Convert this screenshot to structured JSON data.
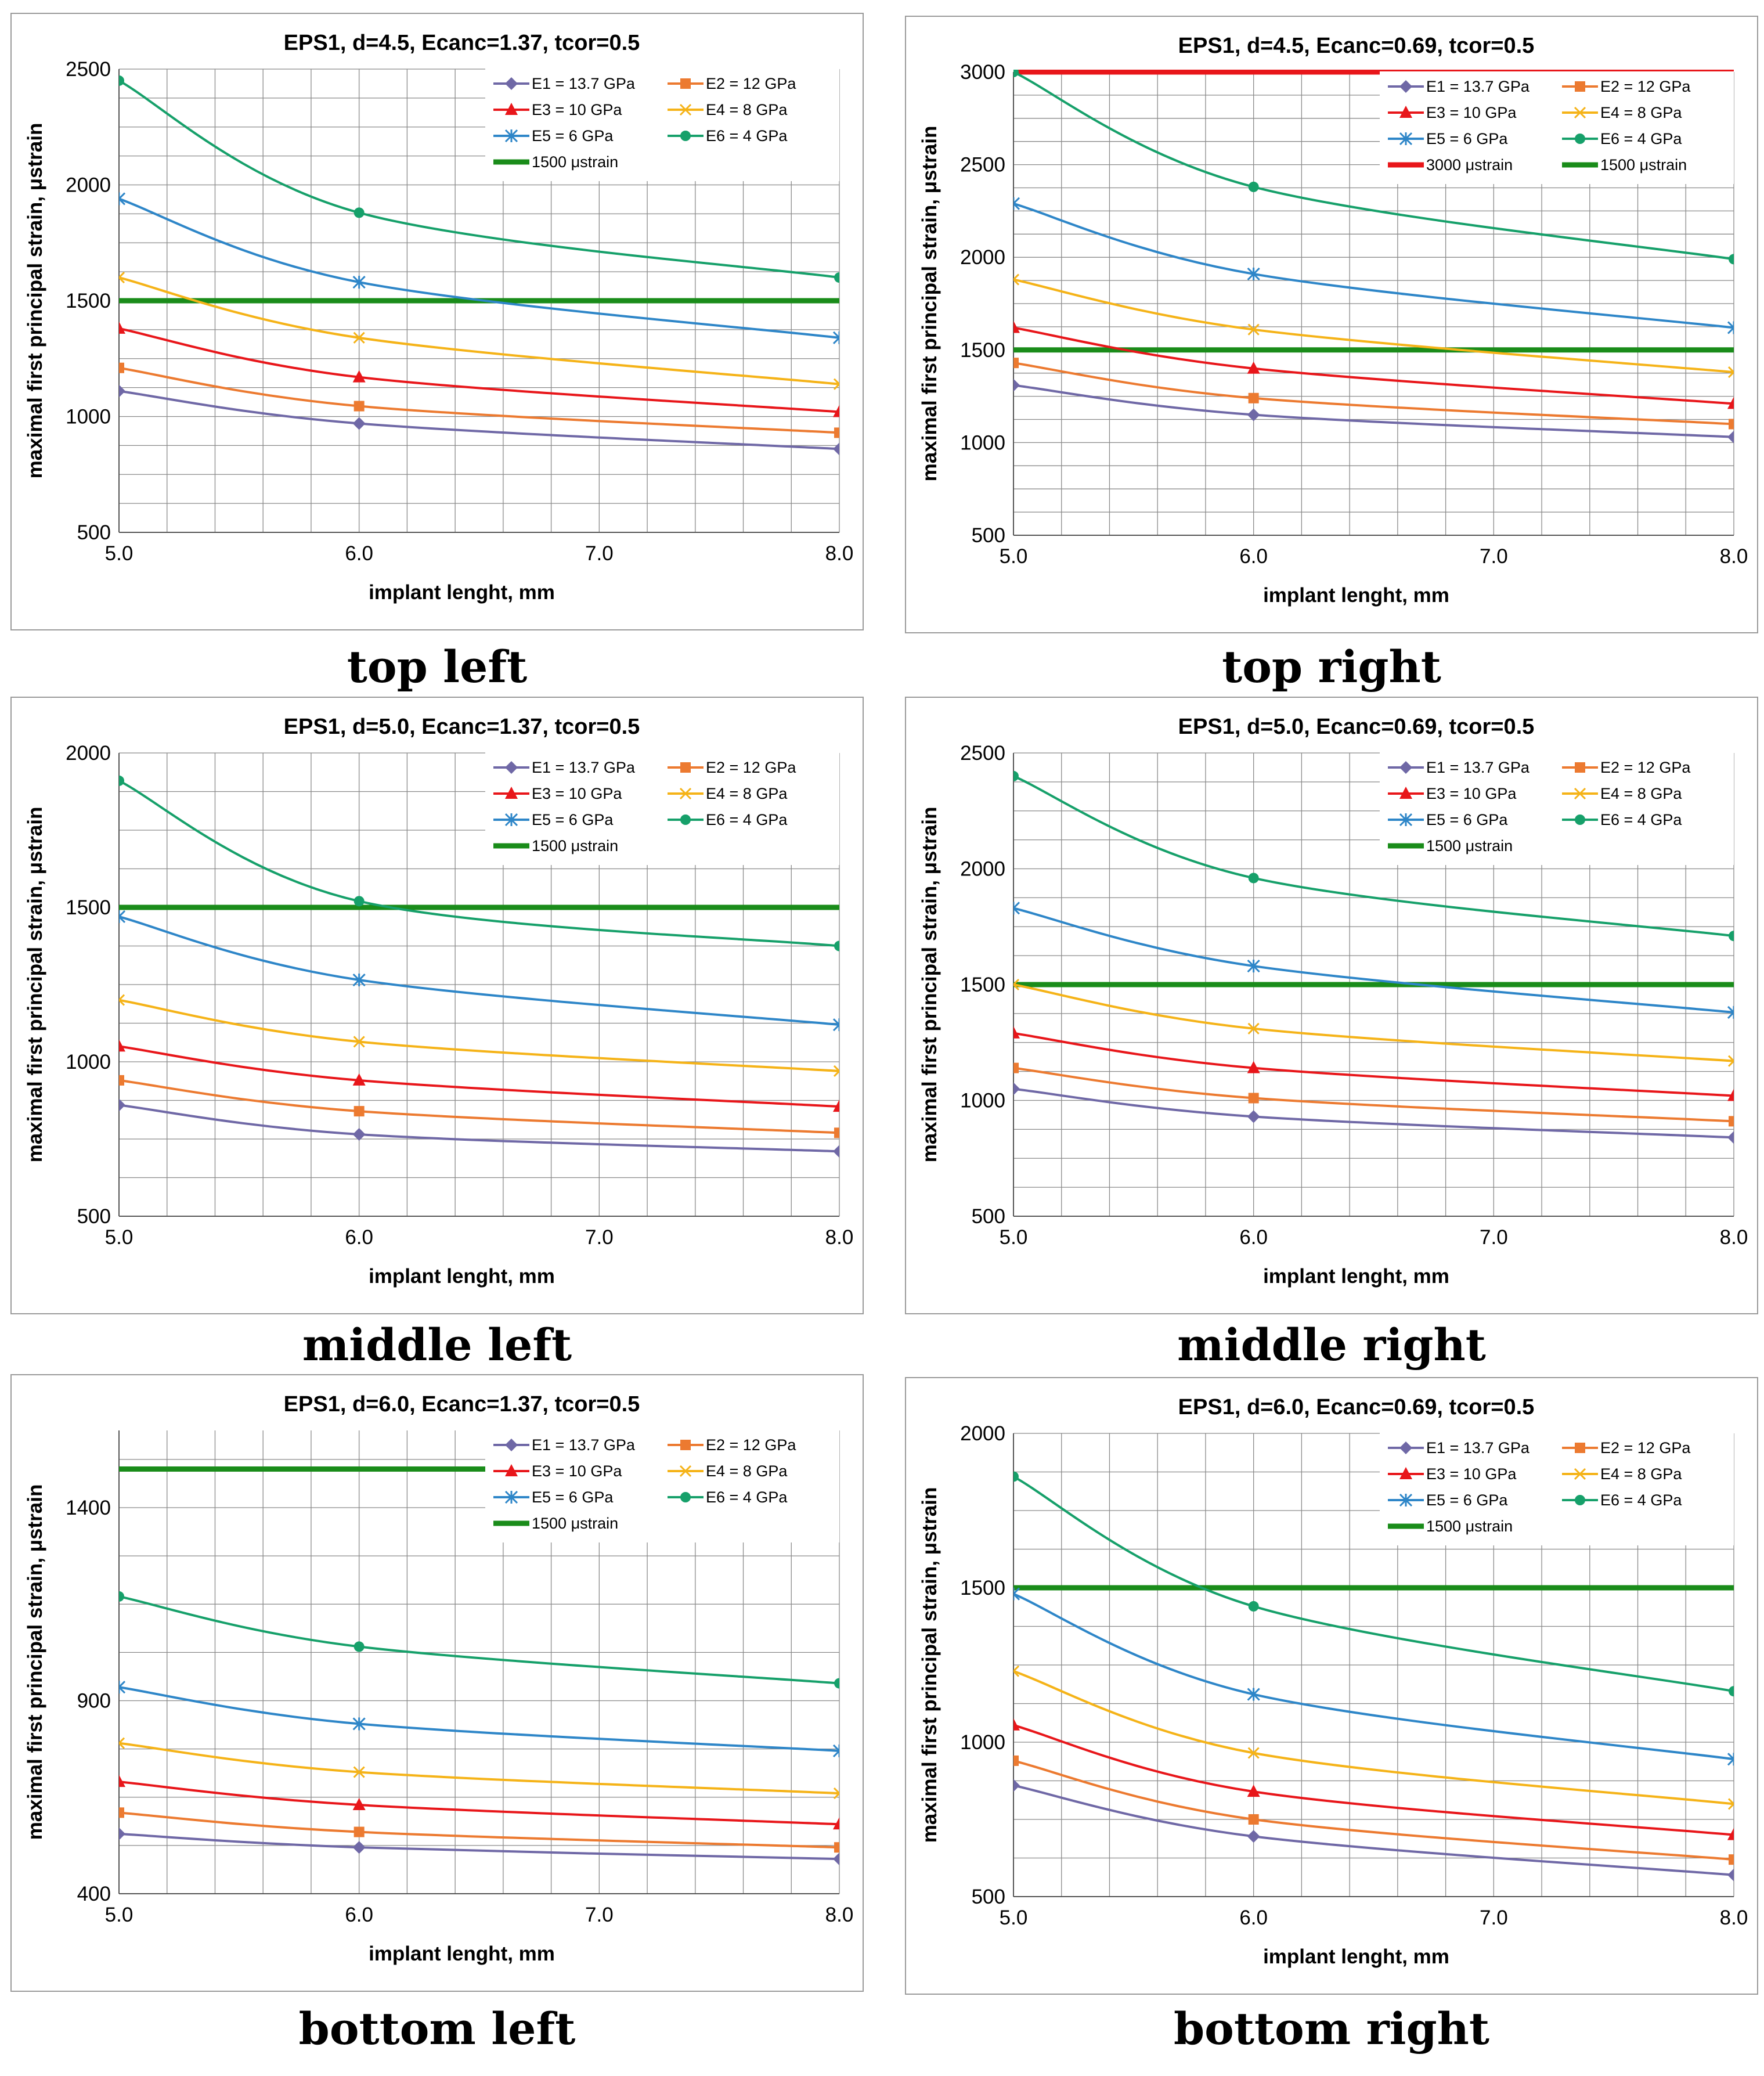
{
  "figure": {
    "colors": {
      "E1": "#6f68a6",
      "E2": "#ec7a30",
      "E3": "#e8161a",
      "E4": "#f5b318",
      "E5": "#2e86c8",
      "E6": "#16a06a",
      "ref1500": "#1a8c1a",
      "ref3000": "#e8161a"
    },
    "series_markers": {
      "E1": "diamond",
      "E2": "square",
      "E3": "triangle",
      "E4": "x",
      "E5": "star",
      "E6": "circle"
    }
  },
  "chart_data": [
    {
      "id": "top-left",
      "caption": "top left",
      "type": "line",
      "title": "EPS1, d=4.5, Ecanc=1.37, tcor=0.5",
      "xlabel": "implant lenght, mm",
      "ylabel": "maximal first principal strain, μstrain",
      "x": [
        5.0,
        6.0,
        8.0
      ],
      "xlim": [
        5.0,
        8.0
      ],
      "xticks": [
        "5.0",
        "6.0",
        "7.0",
        "8.0"
      ],
      "ylim": [
        500,
        2500
      ],
      "yticks": [
        "500",
        "1000",
        "1500",
        "2000",
        "2500"
      ],
      "series": [
        {
          "key": "E1",
          "name": "E1 = 13.7 GPa",
          "values": [
            1110,
            970,
            860
          ]
        },
        {
          "key": "E2",
          "name": "E2 = 12 GPa",
          "values": [
            1210,
            1045,
            930
          ]
        },
        {
          "key": "E3",
          "name": "E3 = 10 GPa",
          "values": [
            1380,
            1170,
            1020
          ]
        },
        {
          "key": "E4",
          "name": "E4 = 8 GPa",
          "values": [
            1600,
            1340,
            1140
          ]
        },
        {
          "key": "E5",
          "name": "E5 = 6 GPa",
          "values": [
            1940,
            1580,
            1340
          ]
        },
        {
          "key": "E6",
          "name": "E6 = 4 GPa",
          "values": [
            2450,
            1880,
            1600
          ]
        }
      ],
      "references": [
        {
          "key": "ref1500",
          "name": "1500 μstrain",
          "value": 1500
        }
      ]
    },
    {
      "id": "top-right",
      "caption": "top right",
      "type": "line",
      "title": "EPS1, d=4.5, Ecanc=0.69, tcor=0.5",
      "xlabel": "implant lenght, mm",
      "ylabel": "maximal first principal strain, μstrain",
      "x": [
        5.0,
        6.0,
        8.0
      ],
      "xlim": [
        5.0,
        8.0
      ],
      "xticks": [
        "5.0",
        "6.0",
        "7.0",
        "8.0"
      ],
      "ylim": [
        500,
        3000
      ],
      "yticks": [
        "500",
        "1000",
        "1500",
        "2000",
        "2500",
        "3000"
      ],
      "series": [
        {
          "key": "E1",
          "name": "E1 = 13.7 GPa",
          "values": [
            1310,
            1150,
            1030
          ]
        },
        {
          "key": "E2",
          "name": "E2 = 12 GPa",
          "values": [
            1430,
            1240,
            1100
          ]
        },
        {
          "key": "E3",
          "name": "E3 = 10 GPa",
          "values": [
            1620,
            1400,
            1210
          ]
        },
        {
          "key": "E4",
          "name": "E4 = 8 GPa",
          "values": [
            1880,
            1610,
            1380
          ]
        },
        {
          "key": "E5",
          "name": "E5 = 6 GPa",
          "values": [
            2290,
            1910,
            1620
          ]
        },
        {
          "key": "E6",
          "name": "E6 = 4 GPa",
          "values": [
            3000,
            2380,
            1990
          ]
        }
      ],
      "references": [
        {
          "key": "ref3000",
          "name": "3000 μstrain",
          "value": 3000
        },
        {
          "key": "ref1500",
          "name": "1500 μstrain",
          "value": 1500
        }
      ]
    },
    {
      "id": "middle-left",
      "caption": "middle left",
      "type": "line",
      "title": "EPS1, d=5.0, Ecanc=1.37, tcor=0.5",
      "xlabel": "implant lenght, mm",
      "ylabel": "maximal first principal strain, μstrain",
      "x": [
        5.0,
        6.0,
        8.0
      ],
      "xlim": [
        5.0,
        8.0
      ],
      "xticks": [
        "5.0",
        "6.0",
        "7.0",
        "8.0"
      ],
      "ylim": [
        500,
        2000
      ],
      "yticks": [
        "500",
        "1000",
        "1500",
        "2000"
      ],
      "series": [
        {
          "key": "E1",
          "name": "E1 = 13.7 GPa",
          "values": [
            860,
            765,
            710
          ]
        },
        {
          "key": "E2",
          "name": "E2 = 12 GPa",
          "values": [
            940,
            840,
            770
          ]
        },
        {
          "key": "E3",
          "name": "E3 = 10 GPa",
          "values": [
            1050,
            940,
            855
          ]
        },
        {
          "key": "E4",
          "name": "E4 = 8 GPa",
          "values": [
            1200,
            1065,
            970
          ]
        },
        {
          "key": "E5",
          "name": "E5 = 6 GPa",
          "values": [
            1470,
            1265,
            1120
          ]
        },
        {
          "key": "E6",
          "name": "E6 = 4 GPa",
          "values": [
            1910,
            1520,
            1375
          ]
        }
      ],
      "references": [
        {
          "key": "ref1500",
          "name": "1500 μstrain",
          "value": 1500
        }
      ]
    },
    {
      "id": "middle-right",
      "caption": "middle right",
      "type": "line",
      "title": "EPS1, d=5.0, Ecanc=0.69, tcor=0.5",
      "xlabel": "implant lenght, mm",
      "ylabel": "maximal first principal strain, μstrain",
      "x": [
        5.0,
        6.0,
        8.0
      ],
      "xlim": [
        5.0,
        8.0
      ],
      "xticks": [
        "5.0",
        "6.0",
        "7.0",
        "8.0"
      ],
      "ylim": [
        500,
        2500
      ],
      "yticks": [
        "500",
        "1000",
        "1500",
        "2000",
        "2500"
      ],
      "series": [
        {
          "key": "E1",
          "name": "E1 = 13.7 GPa",
          "values": [
            1050,
            930,
            840
          ]
        },
        {
          "key": "E2",
          "name": "E2 = 12 GPa",
          "values": [
            1140,
            1010,
            910
          ]
        },
        {
          "key": "E3",
          "name": "E3 = 10 GPa",
          "values": [
            1290,
            1140,
            1020
          ]
        },
        {
          "key": "E4",
          "name": "E4 = 8 GPa",
          "values": [
            1500,
            1310,
            1170
          ]
        },
        {
          "key": "E5",
          "name": "E5 = 6 GPa",
          "values": [
            1830,
            1580,
            1380
          ]
        },
        {
          "key": "E6",
          "name": "E6 = 4 GPa",
          "values": [
            2400,
            1960,
            1710
          ]
        }
      ],
      "references": [
        {
          "key": "ref1500",
          "name": "1500 μstrain",
          "value": 1500
        }
      ]
    },
    {
      "id": "bottom-left",
      "caption": "bottom left",
      "type": "line",
      "title": "EPS1, d=6.0, Ecanc=1.37, tcor=0.5",
      "xlabel": "implant lenght, mm",
      "ylabel": "maximal first principal strain, μstrain",
      "x": [
        5.0,
        6.0,
        8.0
      ],
      "xlim": [
        5.0,
        8.0
      ],
      "xticks": [
        "5.0",
        "6.0",
        "7.0",
        "8.0"
      ],
      "ylim": [
        400,
        1600
      ],
      "yticks": [
        "400",
        "900",
        "1400"
      ],
      "series": [
        {
          "key": "E1",
          "name": "E1 = 13.7 GPa",
          "values": [
            555,
            520,
            490
          ]
        },
        {
          "key": "E2",
          "name": "E2 = 12 GPa",
          "values": [
            610,
            560,
            520
          ]
        },
        {
          "key": "E3",
          "name": "E3 = 10 GPa",
          "values": [
            690,
            630,
            580
          ]
        },
        {
          "key": "E4",
          "name": "E4 = 8 GPa",
          "values": [
            790,
            715,
            660
          ]
        },
        {
          "key": "E5",
          "name": "E5 = 6 GPa",
          "values": [
            935,
            840,
            770
          ]
        },
        {
          "key": "E6",
          "name": "E6 = 4 GPa",
          "values": [
            1170,
            1040,
            945
          ]
        }
      ],
      "references": [
        {
          "key": "ref1500",
          "name": "1500 μstrain",
          "value": 1500
        }
      ]
    },
    {
      "id": "bottom-right",
      "caption": "bottom right",
      "type": "line",
      "title": "EPS1, d=6.0, Ecanc=0.69, tcor=0.5",
      "xlabel": "implant lenght, mm",
      "ylabel": "maximal first principal strain, μstrain",
      "x": [
        5.0,
        6.0,
        8.0
      ],
      "xlim": [
        5.0,
        8.0
      ],
      "xticks": [
        "5.0",
        "6.0",
        "7.0",
        "8.0"
      ],
      "ylim": [
        500,
        2000
      ],
      "yticks": [
        "500",
        "1000",
        "1500",
        "2000"
      ],
      "series": [
        {
          "key": "E1",
          "name": "E1 = 13.7 GPa",
          "values": [
            860,
            695,
            570
          ]
        },
        {
          "key": "E2",
          "name": "E2 = 12 GPa",
          "values": [
            940,
            750,
            620
          ]
        },
        {
          "key": "E3",
          "name": "E3 = 10 GPa",
          "values": [
            1055,
            840,
            700
          ]
        },
        {
          "key": "E4",
          "name": "E4 = 8 GPa",
          "values": [
            1230,
            965,
            800
          ]
        },
        {
          "key": "E5",
          "name": "E5 = 6 GPa",
          "values": [
            1480,
            1155,
            945
          ]
        },
        {
          "key": "E6",
          "name": "E6 = 4 GPa",
          "values": [
            1860,
            1440,
            1165
          ]
        }
      ],
      "references": [
        {
          "key": "ref1500",
          "name": "1500 μstrain",
          "value": 1500
        }
      ]
    }
  ]
}
